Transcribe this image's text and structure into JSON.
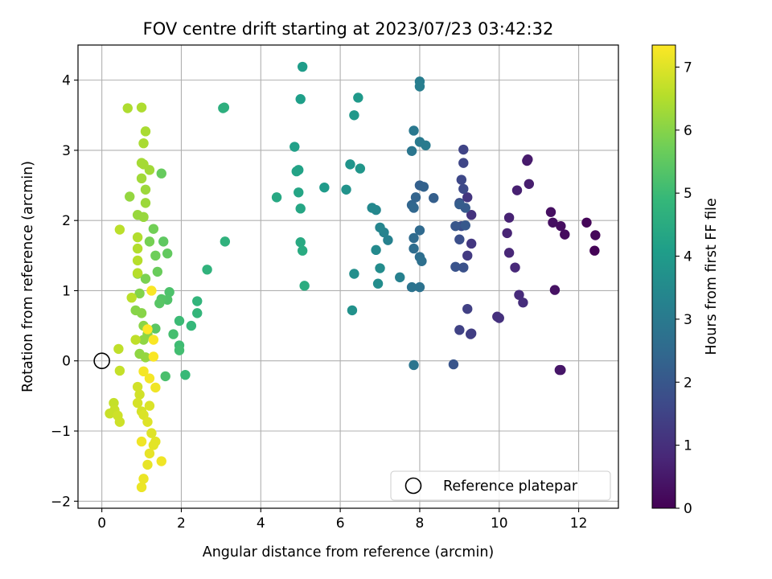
{
  "chart_data": {
    "type": "scatter",
    "title": "FOV centre drift starting at 2023/07/23 03:42:32",
    "xlabel": "Angular distance from reference (arcmin)",
    "ylabel": "Rotation from reference (arcmin)",
    "xlim": [
      -0.6,
      13.0
    ],
    "ylim": [
      -2.1,
      4.5
    ],
    "xticks": [
      0,
      2,
      4,
      6,
      8,
      10,
      12
    ],
    "yticks": [
      -2,
      -1,
      0,
      1,
      2,
      3,
      4
    ],
    "xtick_labels": [
      "0",
      "2",
      "4",
      "6",
      "8",
      "10",
      "12"
    ],
    "ytick_labels": [
      "−2",
      "−1",
      "0",
      "1",
      "2",
      "3",
      "4"
    ],
    "grid": true,
    "colormap": "viridis",
    "viridis_stops": [
      "#440154",
      "#482878",
      "#3e4989",
      "#31688e",
      "#26828e",
      "#1f9e89",
      "#35b779",
      "#6ece58",
      "#b5de2b",
      "#fde725"
    ],
    "colorbar": {
      "label": "Hours from first FF file",
      "range": [
        0,
        7.35
      ],
      "ticks": [
        0,
        1,
        2,
        3,
        4,
        5,
        6,
        7
      ],
      "tick_labels": [
        "0",
        "1",
        "2",
        "3",
        "4",
        "5",
        "6",
        "7"
      ]
    },
    "reference": {
      "x": 0,
      "y": 0,
      "marker": "open-circle",
      "color": "#000000"
    },
    "legend": {
      "label": "Reference platepar",
      "position": "lower-right"
    },
    "points": [
      {
        "x": 12.4,
        "y": 1.57,
        "h": 0.05
      },
      {
        "x": 12.2,
        "y": 1.97,
        "h": 0.1
      },
      {
        "x": 12.42,
        "y": 1.79,
        "h": 0.12
      },
      {
        "x": 11.65,
        "y": 1.8,
        "h": 0.2
      },
      {
        "x": 11.55,
        "y": 1.92,
        "h": 0.25
      },
      {
        "x": 11.3,
        "y": 2.12,
        "h": 0.3
      },
      {
        "x": 11.35,
        "y": 1.97,
        "h": 0.3
      },
      {
        "x": 11.4,
        "y": 1.01,
        "h": 0.35
      },
      {
        "x": 11.55,
        "y": -0.13,
        "h": 0.4
      },
      {
        "x": 11.52,
        "y": -0.13,
        "h": 0.45
      },
      {
        "x": 10.7,
        "y": 2.85,
        "h": 0.5
      },
      {
        "x": 10.72,
        "y": 2.87,
        "h": 0.55
      },
      {
        "x": 10.75,
        "y": 2.52,
        "h": 0.6
      },
      {
        "x": 10.45,
        "y": 2.43,
        "h": 0.65
      },
      {
        "x": 10.25,
        "y": 2.04,
        "h": 0.7
      },
      {
        "x": 10.2,
        "y": 1.82,
        "h": 0.75
      },
      {
        "x": 10.25,
        "y": 1.54,
        "h": 0.8
      },
      {
        "x": 10.4,
        "y": 1.33,
        "h": 0.85
      },
      {
        "x": 10.5,
        "y": 0.94,
        "h": 0.9
      },
      {
        "x": 10.6,
        "y": 0.83,
        "h": 0.95
      },
      {
        "x": 9.95,
        "y": 0.63,
        "h": 1.0
      },
      {
        "x": 10.0,
        "y": 0.61,
        "h": 1.05
      },
      {
        "x": 9.3,
        "y": 2.08,
        "h": 1.1
      },
      {
        "x": 9.2,
        "y": 2.33,
        "h": 1.15
      },
      {
        "x": 9.3,
        "y": 1.67,
        "h": 1.2
      },
      {
        "x": 9.2,
        "y": 1.5,
        "h": 1.25
      },
      {
        "x": 9.3,
        "y": 0.39,
        "h": 1.3
      },
      {
        "x": 9.28,
        "y": 0.38,
        "h": 1.35
      },
      {
        "x": 9.2,
        "y": 0.74,
        "h": 1.4
      },
      {
        "x": 9.0,
        "y": 0.44,
        "h": 1.45
      },
      {
        "x": 9.1,
        "y": 3.01,
        "h": 1.5
      },
      {
        "x": 9.1,
        "y": 2.82,
        "h": 1.55
      },
      {
        "x": 9.05,
        "y": 2.58,
        "h": 1.6
      },
      {
        "x": 9.1,
        "y": 2.45,
        "h": 1.65
      },
      {
        "x": 9.0,
        "y": 2.25,
        "h": 1.7
      },
      {
        "x": 9.05,
        "y": 1.92,
        "h": 1.75
      },
      {
        "x": 9.0,
        "y": 1.73,
        "h": 1.8
      },
      {
        "x": 9.1,
        "y": 1.33,
        "h": 1.85
      },
      {
        "x": 8.9,
        "y": 1.34,
        "h": 1.9
      },
      {
        "x": 8.85,
        "y": -0.05,
        "h": 1.95
      },
      {
        "x": 8.9,
        "y": 1.92,
        "h": 2.0
      },
      {
        "x": 9.15,
        "y": 1.93,
        "h": 2.05
      },
      {
        "x": 9.15,
        "y": 2.18,
        "h": 2.1
      },
      {
        "x": 9.0,
        "y": 2.23,
        "h": 2.15
      },
      {
        "x": 8.35,
        "y": 2.32,
        "h": 2.2
      },
      {
        "x": 8.0,
        "y": 2.5,
        "h": 2.25
      },
      {
        "x": 8.1,
        "y": 2.48,
        "h": 2.3
      },
      {
        "x": 7.9,
        "y": 2.33,
        "h": 2.35
      },
      {
        "x": 7.8,
        "y": 2.22,
        "h": 2.4
      },
      {
        "x": 7.85,
        "y": 2.18,
        "h": 2.45
      },
      {
        "x": 8.0,
        "y": 1.86,
        "h": 2.5
      },
      {
        "x": 7.85,
        "y": 1.75,
        "h": 2.55
      },
      {
        "x": 7.85,
        "y": 1.6,
        "h": 2.6
      },
      {
        "x": 8.0,
        "y": 1.48,
        "h": 2.65
      },
      {
        "x": 8.05,
        "y": 1.42,
        "h": 2.7
      },
      {
        "x": 8.0,
        "y": 1.05,
        "h": 2.75
      },
      {
        "x": 7.8,
        "y": 1.05,
        "h": 2.8
      },
      {
        "x": 7.85,
        "y": -0.06,
        "h": 2.85
      },
      {
        "x": 7.8,
        "y": 2.99,
        "h": 2.9
      },
      {
        "x": 7.85,
        "y": 3.28,
        "h": 2.95
      },
      {
        "x": 8.0,
        "y": 3.12,
        "h": 3.0
      },
      {
        "x": 8.15,
        "y": 3.07,
        "h": 3.05
      },
      {
        "x": 8.0,
        "y": 3.98,
        "h": 3.1
      },
      {
        "x": 8.0,
        "y": 3.91,
        "h": 3.15
      },
      {
        "x": 7.5,
        "y": 1.19,
        "h": 3.2
      },
      {
        "x": 7.2,
        "y": 1.72,
        "h": 3.25
      },
      {
        "x": 7.1,
        "y": 1.83,
        "h": 3.3
      },
      {
        "x": 7.0,
        "y": 1.9,
        "h": 3.35
      },
      {
        "x": 6.9,
        "y": 2.15,
        "h": 3.4
      },
      {
        "x": 6.8,
        "y": 2.18,
        "h": 3.45
      },
      {
        "x": 6.9,
        "y": 1.58,
        "h": 3.5
      },
      {
        "x": 7.0,
        "y": 1.32,
        "h": 3.55
      },
      {
        "x": 6.95,
        "y": 1.1,
        "h": 3.6
      },
      {
        "x": 6.35,
        "y": 1.24,
        "h": 3.65
      },
      {
        "x": 6.3,
        "y": 0.72,
        "h": 3.7
      },
      {
        "x": 6.15,
        "y": 2.44,
        "h": 3.75
      },
      {
        "x": 6.25,
        "y": 2.8,
        "h": 3.8
      },
      {
        "x": 6.5,
        "y": 2.74,
        "h": 3.85
      },
      {
        "x": 6.35,
        "y": 3.5,
        "h": 3.9
      },
      {
        "x": 6.45,
        "y": 3.75,
        "h": 3.95
      },
      {
        "x": 5.6,
        "y": 2.47,
        "h": 4.0
      },
      {
        "x": 5.05,
        "y": 4.19,
        "h": 4.05
      },
      {
        "x": 5.0,
        "y": 3.73,
        "h": 4.1
      },
      {
        "x": 4.85,
        "y": 3.05,
        "h": 4.15
      },
      {
        "x": 4.95,
        "y": 2.72,
        "h": 4.2
      },
      {
        "x": 4.9,
        "y": 2.7,
        "h": 4.25
      },
      {
        "x": 4.95,
        "y": 2.4,
        "h": 4.3
      },
      {
        "x": 5.0,
        "y": 2.17,
        "h": 4.35
      },
      {
        "x": 4.4,
        "y": 2.33,
        "h": 4.4
      },
      {
        "x": 5.0,
        "y": 1.69,
        "h": 4.45
      },
      {
        "x": 5.05,
        "y": 1.57,
        "h": 4.5
      },
      {
        "x": 5.1,
        "y": 1.07,
        "h": 4.55
      },
      {
        "x": 3.05,
        "y": 3.6,
        "h": 4.6
      },
      {
        "x": 3.08,
        "y": 3.61,
        "h": 4.65
      },
      {
        "x": 3.1,
        "y": 1.7,
        "h": 4.7
      },
      {
        "x": 2.65,
        "y": 1.3,
        "h": 4.75
      },
      {
        "x": 2.4,
        "y": 0.85,
        "h": 4.8
      },
      {
        "x": 2.4,
        "y": 0.68,
        "h": 4.85
      },
      {
        "x": 2.25,
        "y": 0.5,
        "h": 4.9
      },
      {
        "x": 2.1,
        "y": -0.2,
        "h": 4.95
      },
      {
        "x": 1.95,
        "y": 0.57,
        "h": 5.0
      },
      {
        "x": 1.95,
        "y": 0.22,
        "h": 5.05
      },
      {
        "x": 1.95,
        "y": 0.15,
        "h": 5.1
      },
      {
        "x": 1.8,
        "y": 0.38,
        "h": 5.15
      },
      {
        "x": 1.6,
        "y": -0.22,
        "h": 5.2
      },
      {
        "x": 1.7,
        "y": 0.98,
        "h": 5.25
      },
      {
        "x": 1.65,
        "y": 0.87,
        "h": 5.3
      },
      {
        "x": 1.5,
        "y": 0.88,
        "h": 5.35
      },
      {
        "x": 1.45,
        "y": 0.82,
        "h": 5.4
      },
      {
        "x": 1.35,
        "y": 0.46,
        "h": 5.45
      },
      {
        "x": 1.55,
        "y": 1.7,
        "h": 5.5
      },
      {
        "x": 1.65,
        "y": 1.53,
        "h": 5.55
      },
      {
        "x": 1.5,
        "y": 2.67,
        "h": 5.6
      },
      {
        "x": 1.4,
        "y": 1.27,
        "h": 5.65
      },
      {
        "x": 1.35,
        "y": 1.5,
        "h": 5.7
      },
      {
        "x": 1.3,
        "y": 1.88,
        "h": 5.75
      },
      {
        "x": 1.2,
        "y": 1.7,
        "h": 5.8
      },
      {
        "x": 1.1,
        "y": 1.17,
        "h": 5.85
      },
      {
        "x": 0.9,
        "y": 1.24,
        "h": 5.9
      },
      {
        "x": 0.95,
        "y": 0.96,
        "h": 5.95
      },
      {
        "x": 0.85,
        "y": 0.72,
        "h": 6.0
      },
      {
        "x": 1.0,
        "y": 0.68,
        "h": 6.0
      },
      {
        "x": 1.05,
        "y": 0.5,
        "h": 6.05
      },
      {
        "x": 1.15,
        "y": 0.38,
        "h": 6.05
      },
      {
        "x": 1.05,
        "y": 0.3,
        "h": 6.1
      },
      {
        "x": 0.95,
        "y": 0.1,
        "h": 6.1
      },
      {
        "x": 1.1,
        "y": 0.05,
        "h": 6.15
      },
      {
        "x": 0.7,
        "y": 2.34,
        "h": 6.15
      },
      {
        "x": 0.9,
        "y": 2.08,
        "h": 6.2
      },
      {
        "x": 1.05,
        "y": 2.05,
        "h": 6.2
      },
      {
        "x": 1.1,
        "y": 2.25,
        "h": 6.25
      },
      {
        "x": 1.1,
        "y": 2.44,
        "h": 6.25
      },
      {
        "x": 1.0,
        "y": 2.6,
        "h": 6.3
      },
      {
        "x": 1.2,
        "y": 2.72,
        "h": 6.3
      },
      {
        "x": 1.05,
        "y": 2.8,
        "h": 6.35
      },
      {
        "x": 1.0,
        "y": 2.82,
        "h": 6.35
      },
      {
        "x": 1.05,
        "y": 3.1,
        "h": 6.4
      },
      {
        "x": 1.1,
        "y": 3.27,
        "h": 6.4
      },
      {
        "x": 1.0,
        "y": 3.61,
        "h": 6.45
      },
      {
        "x": 0.65,
        "y": 3.6,
        "h": 6.45
      },
      {
        "x": 0.9,
        "y": 1.76,
        "h": 6.5
      },
      {
        "x": 0.9,
        "y": 1.6,
        "h": 6.5
      },
      {
        "x": 0.9,
        "y": 1.43,
        "h": 6.55
      },
      {
        "x": 0.9,
        "y": 1.25,
        "h": 6.55
      },
      {
        "x": 0.45,
        "y": 1.87,
        "h": 6.6
      },
      {
        "x": 0.75,
        "y": 0.9,
        "h": 6.6
      },
      {
        "x": 0.85,
        "y": 0.3,
        "h": 6.65
      },
      {
        "x": 0.42,
        "y": 0.17,
        "h": 6.65
      },
      {
        "x": 0.45,
        "y": -0.14,
        "h": 6.7
      },
      {
        "x": 0.3,
        "y": -0.6,
        "h": 6.7
      },
      {
        "x": 0.32,
        "y": -0.7,
        "h": 6.75
      },
      {
        "x": 0.2,
        "y": -0.75,
        "h": 6.75
      },
      {
        "x": 0.4,
        "y": -0.78,
        "h": 6.8
      },
      {
        "x": 0.45,
        "y": -0.87,
        "h": 6.8
      },
      {
        "x": 0.9,
        "y": -0.37,
        "h": 6.85
      },
      {
        "x": 0.95,
        "y": -0.48,
        "h": 6.85
      },
      {
        "x": 0.9,
        "y": -0.6,
        "h": 6.9
      },
      {
        "x": 1.0,
        "y": -0.72,
        "h": 6.9
      },
      {
        "x": 1.05,
        "y": -0.77,
        "h": 6.95
      },
      {
        "x": 1.2,
        "y": -0.64,
        "h": 6.95
      },
      {
        "x": 1.15,
        "y": -0.87,
        "h": 7.0
      },
      {
        "x": 1.25,
        "y": -1.03,
        "h": 7.0
      },
      {
        "x": 1.35,
        "y": -1.15,
        "h": 7.05
      },
      {
        "x": 1.3,
        "y": -1.2,
        "h": 7.05
      },
      {
        "x": 1.2,
        "y": -1.32,
        "h": 7.1
      },
      {
        "x": 1.15,
        "y": -1.48,
        "h": 7.1
      },
      {
        "x": 1.05,
        "y": -1.68,
        "h": 7.15
      },
      {
        "x": 1.0,
        "y": -1.8,
        "h": 7.15
      },
      {
        "x": 1.0,
        "y": -1.15,
        "h": 7.2
      },
      {
        "x": 1.5,
        "y": -1.43,
        "h": 7.2
      },
      {
        "x": 1.35,
        "y": -0.38,
        "h": 7.2
      },
      {
        "x": 1.2,
        "y": -0.25,
        "h": 7.25
      },
      {
        "x": 1.05,
        "y": -0.15,
        "h": 7.25
      },
      {
        "x": 1.3,
        "y": 0.06,
        "h": 7.3
      },
      {
        "x": 1.3,
        "y": 0.3,
        "h": 7.3
      },
      {
        "x": 1.25,
        "y": 1.0,
        "h": 7.3
      },
      {
        "x": 1.15,
        "y": 0.45,
        "h": 7.35
      }
    ]
  }
}
